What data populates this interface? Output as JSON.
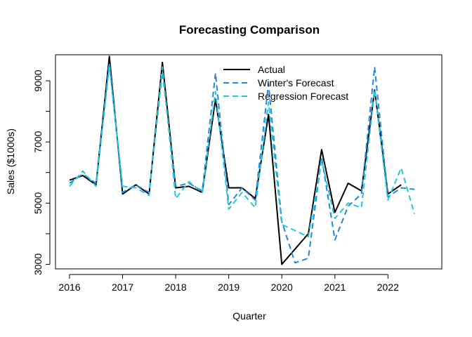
{
  "chart_data": {
    "type": "line",
    "title": "Forecasting Comparison",
    "xlabel": "Quarter",
    "ylabel": "Sales ($1000s)",
    "xlim": [
      2016,
      2022.75
    ],
    "ylim": [
      2850,
      9850
    ],
    "x_ticks": [
      2016,
      2017,
      2018,
      2019,
      2020,
      2021,
      2022
    ],
    "y_ticks": [
      3000,
      5000,
      7000,
      9000
    ],
    "legend_position": "top-center",
    "series": [
      {
        "name": "Actual",
        "color": "#000000",
        "dash": "solid",
        "x": [
          2016,
          2016.25,
          2016.5,
          2016.75,
          2017,
          2017.25,
          2017.5,
          2017.75,
          2018,
          2018.25,
          2018.5,
          2018.75,
          2019,
          2019.25,
          2019.5,
          2019.75,
          2020,
          2020.25,
          2020.5,
          2020.75,
          2021,
          2021.25,
          2021.5,
          2021.75,
          2022,
          2022.25
        ],
        "values": [
          5750,
          5900,
          5600,
          9800,
          5300,
          5600,
          5300,
          9600,
          5500,
          5550,
          5350,
          8400,
          5500,
          5500,
          5150,
          7900,
          3000,
          3500,
          4000,
          6750,
          4700,
          5650,
          5400,
          8700,
          5300,
          5600
        ]
      },
      {
        "name": "Winter's Forecast",
        "color": "#1e88e5",
        "dash": "dashed",
        "x": [
          2016,
          2016.25,
          2016.5,
          2016.75,
          2017,
          2017.25,
          2017.5,
          2017.75,
          2018,
          2018.25,
          2018.5,
          2018.75,
          2019,
          2019.25,
          2019.5,
          2019.75,
          2020,
          2020.25,
          2020.5,
          2020.75,
          2021,
          2021.25,
          2021.5,
          2021.75,
          2022,
          2022.25,
          2022.5
        ],
        "values": [
          5650,
          5950,
          5650,
          9600,
          5350,
          5600,
          5350,
          9300,
          5550,
          5650,
          5400,
          9250,
          4950,
          5500,
          5100,
          8900,
          4400,
          3050,
          3200,
          6500,
          3800,
          4900,
          5300,
          9450,
          5200,
          5500,
          5450
        ]
      },
      {
        "name": "Regression Forecast",
        "color": "#26c6da",
        "dash": "dashed",
        "x": [
          2016,
          2016.25,
          2016.5,
          2016.75,
          2017,
          2017.25,
          2017.5,
          2017.75,
          2018,
          2018.25,
          2018.5,
          2018.75,
          2019,
          2019.25,
          2019.5,
          2019.75,
          2020,
          2020.25,
          2020.5,
          2020.75,
          2021,
          2021.25,
          2021.5,
          2021.75,
          2022,
          2022.25,
          2022.5
        ],
        "values": [
          5550,
          6050,
          5550,
          9500,
          5550,
          5500,
          5250,
          9450,
          5150,
          5700,
          5350,
          8650,
          4800,
          5350,
          4850,
          8300,
          4300,
          4100,
          3900,
          6400,
          4500,
          5000,
          4850,
          8700,
          5100,
          6150,
          4650
        ]
      }
    ]
  }
}
